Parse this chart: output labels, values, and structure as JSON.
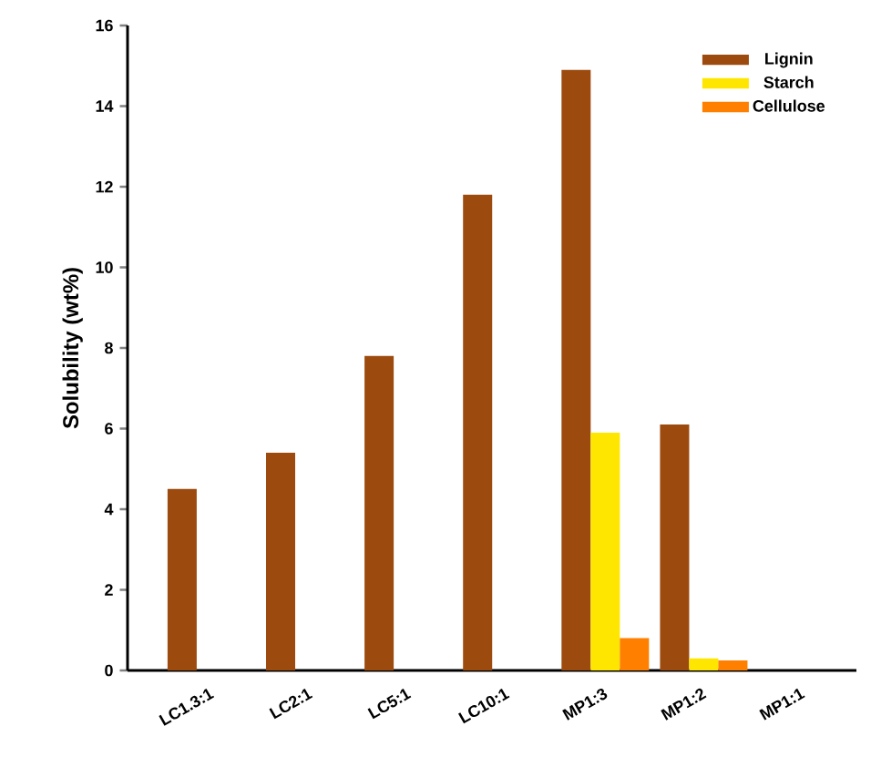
{
  "chart_data": {
    "type": "bar",
    "ylabel": "Solubility (wt%)",
    "categories": [
      "LC1.3:1",
      "LC2:1",
      "LC5:1",
      "LC10:1",
      "MP1:3",
      "MP1:2",
      "MP1:1"
    ],
    "series": [
      {
        "name": "Lignin",
        "color": "#9c4a0e",
        "values": [
          4.5,
          5.4,
          7.8,
          11.8,
          14.9,
          6.1,
          0
        ]
      },
      {
        "name": "Starch",
        "color": "#ffe600",
        "values": [
          0,
          0,
          0,
          0,
          5.9,
          0.3,
          0
        ]
      },
      {
        "name": "Cellulose",
        "color": "#ff7f00",
        "values": [
          0,
          0,
          0,
          0,
          0.8,
          0.25,
          0
        ]
      }
    ],
    "ylim": [
      0,
      16
    ],
    "yticks": [
      0,
      2,
      4,
      6,
      8,
      10,
      12,
      14,
      16
    ],
    "legend": "top right"
  }
}
